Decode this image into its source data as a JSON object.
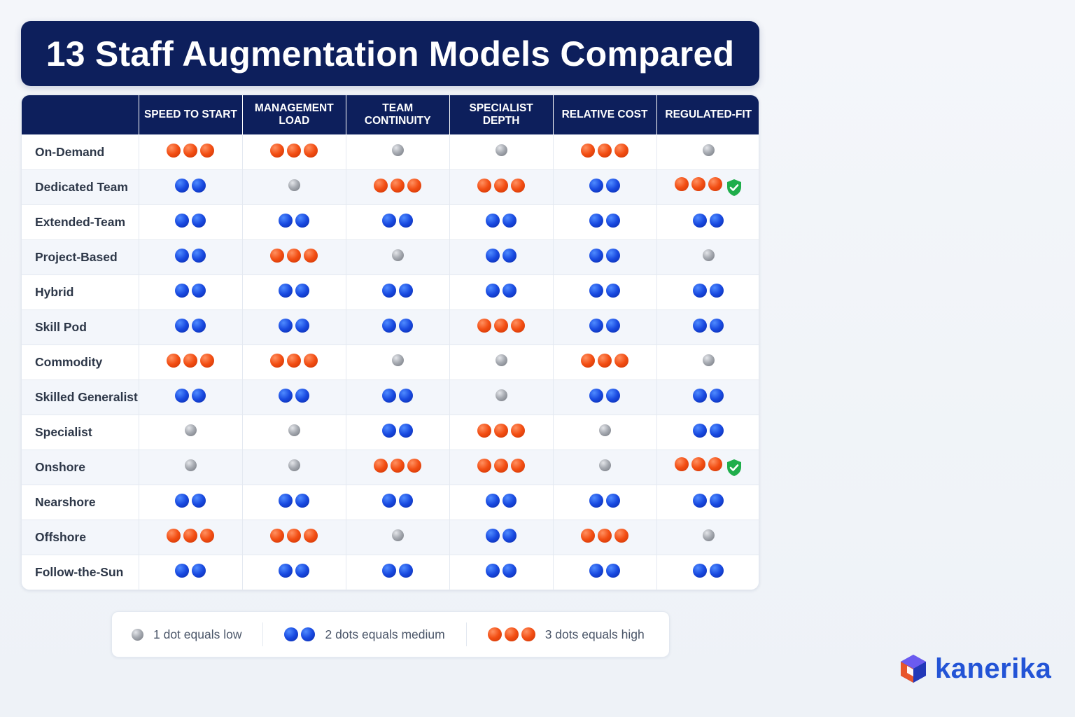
{
  "title": "13 Staff Augmentation Models Compared",
  "table": {
    "columns": [
      "SPEED TO START",
      "MANAGEMENT LOAD",
      "TEAM CONTINUITY",
      "SPECIALIST DEPTH",
      "RELATIVE COST",
      "REGULATED-FIT"
    ],
    "rows": [
      {
        "model": "On-Demand",
        "ratings": [
          3,
          3,
          1,
          1,
          3,
          1
        ],
        "regulated_badge": false
      },
      {
        "model": "Dedicated Team",
        "ratings": [
          2,
          1,
          3,
          3,
          2,
          3
        ],
        "regulated_badge": true
      },
      {
        "model": "Extended-Team",
        "ratings": [
          2,
          2,
          2,
          2,
          2,
          2
        ],
        "regulated_badge": false
      },
      {
        "model": "Project-Based",
        "ratings": [
          2,
          3,
          1,
          2,
          2,
          1
        ],
        "regulated_badge": false
      },
      {
        "model": "Hybrid",
        "ratings": [
          2,
          2,
          2,
          2,
          2,
          2
        ],
        "regulated_badge": false
      },
      {
        "model": "Skill Pod",
        "ratings": [
          2,
          2,
          2,
          3,
          2,
          2
        ],
        "regulated_badge": false
      },
      {
        "model": "Commodity",
        "ratings": [
          3,
          3,
          1,
          1,
          3,
          1
        ],
        "regulated_badge": false
      },
      {
        "model": "Skilled Generalist",
        "ratings": [
          2,
          2,
          2,
          1,
          2,
          2
        ],
        "regulated_badge": false
      },
      {
        "model": "Specialist",
        "ratings": [
          1,
          1,
          2,
          3,
          1,
          2
        ],
        "regulated_badge": false
      },
      {
        "model": "Onshore",
        "ratings": [
          1,
          1,
          3,
          3,
          1,
          3
        ],
        "regulated_badge": true
      },
      {
        "model": "Nearshore",
        "ratings": [
          2,
          2,
          2,
          2,
          2,
          2
        ],
        "regulated_badge": false
      },
      {
        "model": "Offshore",
        "ratings": [
          3,
          3,
          1,
          2,
          3,
          1
        ],
        "regulated_badge": false
      },
      {
        "model": "Follow-the-Sun",
        "ratings": [
          2,
          2,
          2,
          2,
          2,
          2
        ],
        "regulated_badge": false
      }
    ]
  },
  "legend": {
    "low": "1 dot equals low",
    "medium": "2 dots equals medium",
    "high": "3 dots equals high"
  },
  "colors": {
    "low": "#9a9ea6",
    "medium": "#1849e0",
    "high": "#f24d12",
    "header": "#0d1f5c",
    "badge": "#1fae4b"
  },
  "icons": {
    "regulated_badge": "shield-check-icon",
    "brand_logo": "hexagon-cube-logo"
  },
  "brand": "kanerika"
}
